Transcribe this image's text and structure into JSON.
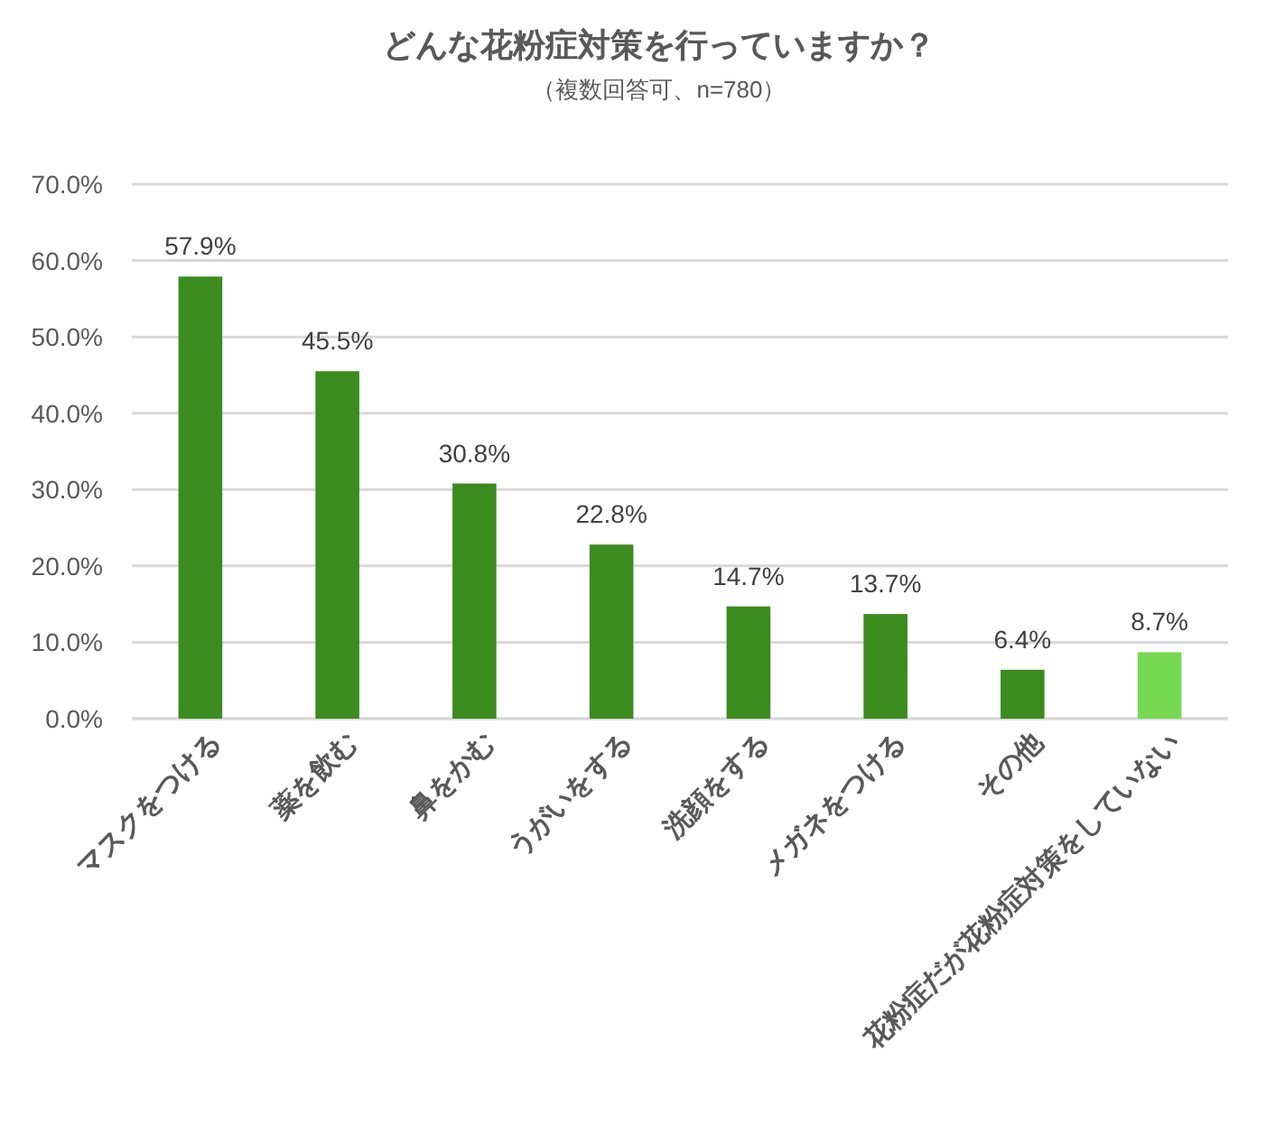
{
  "chart_data": {
    "type": "bar",
    "title": "どんな花粉症対策を行っていますか？",
    "subtitle": "（複数回答可、n=780）",
    "categories": [
      "マスクをつける",
      "薬を飲む",
      "鼻をかむ",
      "うがいをする",
      "洗顔をする",
      "メガネをつける",
      "その他",
      "花粉症だが花粉症対策をしていない"
    ],
    "values": [
      57.9,
      45.5,
      30.8,
      22.8,
      14.7,
      13.7,
      6.4,
      8.7
    ],
    "colors": [
      "#3b8b1f",
      "#3b8b1f",
      "#3b8b1f",
      "#3b8b1f",
      "#3b8b1f",
      "#3b8b1f",
      "#3b8b1f",
      "#75d951"
    ],
    "value_labels": [
      "57.9%",
      "45.5%",
      "30.8%",
      "22.8%",
      "14.7%",
      "13.7%",
      "6.4%",
      "8.7%"
    ],
    "ylim": [
      0,
      70
    ],
    "yticks": [
      {
        "value": 0,
        "label": "0.0%"
      },
      {
        "value": 10,
        "label": "10.0%"
      },
      {
        "value": 20,
        "label": "20.0%"
      },
      {
        "value": 30,
        "label": "30.0%"
      },
      {
        "value": 40,
        "label": "40.0%"
      },
      {
        "value": 50,
        "label": "50.0%"
      },
      {
        "value": 60,
        "label": "60.0%"
      },
      {
        "value": 70,
        "label": "70.0%"
      }
    ],
    "grid": "y"
  }
}
